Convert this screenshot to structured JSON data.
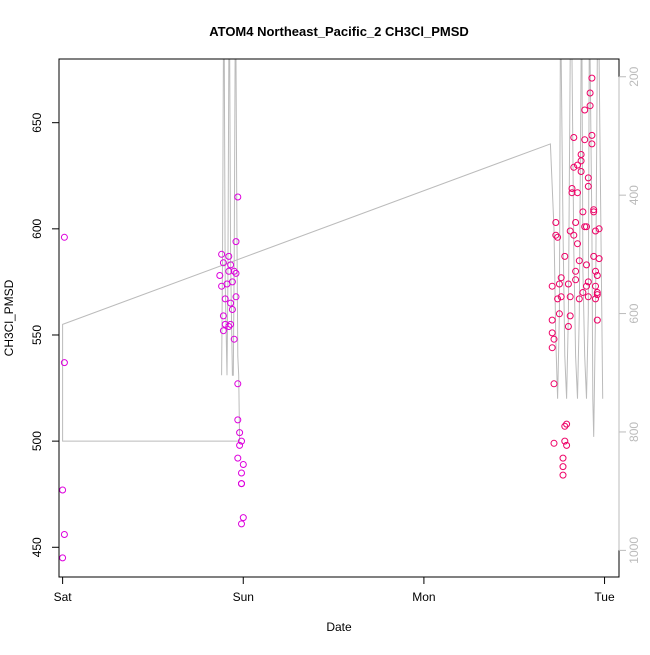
{
  "chart_data": {
    "type": "scatter",
    "title": "ATOM4 Northeast_Pacific_2 CH3Cl_PMSD",
    "xlabel": "Date",
    "ylabel": "CH3Cl_PMSD",
    "xlim": [
      -0.02,
      3.08
    ],
    "ylim": [
      436,
      680
    ],
    "right_ylim": [
      1045,
      170
    ],
    "x_ticks": [
      {
        "value": 0,
        "label": "Sat"
      },
      {
        "value": 1,
        "label": "Sun"
      },
      {
        "value": 2,
        "label": "Mon"
      },
      {
        "value": 3,
        "label": "Tue"
      }
    ],
    "y_ticks": [
      {
        "value": 450,
        "label": "450"
      },
      {
        "value": 500,
        "label": "500"
      },
      {
        "value": 550,
        "label": "550"
      },
      {
        "value": 600,
        "label": "600"
      },
      {
        "value": 650,
        "label": "650"
      }
    ],
    "right_y_ticks": [
      {
        "value": 200,
        "label": "200"
      },
      {
        "value": 400,
        "label": "400"
      },
      {
        "value": 600,
        "label": "600"
      },
      {
        "value": 800,
        "label": "800"
      },
      {
        "value": 1000,
        "label": "1000"
      }
    ],
    "grid": false,
    "colors": {
      "points_low": "#dd00dd",
      "points_high": "#ee0066",
      "altitude_line": "#bbbbbb",
      "axis": "#000000"
    },
    "points": [
      [
        0.01,
        596
      ],
      [
        0.01,
        537
      ],
      [
        0.0,
        477
      ],
      [
        0.01,
        456
      ],
      [
        0.0,
        445
      ],
      [
        0.88,
        588
      ],
      [
        0.89,
        584
      ],
      [
        0.87,
        578
      ],
      [
        0.88,
        573
      ],
      [
        0.89,
        559
      ],
      [
        0.9,
        555
      ],
      [
        0.89,
        552
      ],
      [
        0.91,
        574
      ],
      [
        0.9,
        567
      ],
      [
        0.92,
        587
      ],
      [
        0.92,
        580
      ],
      [
        0.93,
        565
      ],
      [
        0.93,
        555
      ],
      [
        0.93,
        583
      ],
      [
        0.94,
        575
      ],
      [
        0.95,
        580
      ],
      [
        0.94,
        562
      ],
      [
        0.95,
        548
      ],
      [
        0.96,
        579
      ],
      [
        0.96,
        568
      ],
      [
        0.92,
        554
      ],
      [
        0.97,
        615
      ],
      [
        0.96,
        594
      ],
      [
        0.97,
        527
      ],
      [
        0.97,
        510
      ],
      [
        0.98,
        504
      ],
      [
        0.98,
        498
      ],
      [
        0.99,
        500
      ],
      [
        0.97,
        492
      ],
      [
        0.99,
        485
      ],
      [
        0.99,
        480
      ],
      [
        1.0,
        489
      ],
      [
        0.99,
        480
      ],
      [
        1.0,
        464
      ],
      [
        0.99,
        461
      ],
      [
        2.71,
        573
      ],
      [
        2.71,
        557
      ],
      [
        2.71,
        551
      ],
      [
        2.71,
        544
      ],
      [
        2.72,
        548
      ],
      [
        2.72,
        527
      ],
      [
        2.72,
        499
      ],
      [
        2.73,
        603
      ],
      [
        2.73,
        597
      ],
      [
        2.74,
        596
      ],
      [
        2.74,
        567
      ],
      [
        2.75,
        560
      ],
      [
        2.75,
        574
      ],
      [
        2.76,
        577
      ],
      [
        2.76,
        568
      ],
      [
        2.77,
        492
      ],
      [
        2.77,
        488
      ],
      [
        2.77,
        484
      ],
      [
        2.78,
        507
      ],
      [
        2.78,
        500
      ],
      [
        2.79,
        508
      ],
      [
        2.79,
        498
      ],
      [
        2.8,
        554
      ],
      [
        2.8,
        574
      ],
      [
        2.81,
        559
      ],
      [
        2.81,
        599
      ],
      [
        2.81,
        568
      ],
      [
        2.82,
        619
      ],
      [
        2.82,
        617
      ],
      [
        2.83,
        643
      ],
      [
        2.83,
        629
      ],
      [
        2.83,
        597
      ],
      [
        2.84,
        603
      ],
      [
        2.84,
        580
      ],
      [
        2.84,
        576
      ],
      [
        2.85,
        617
      ],
      [
        2.85,
        630
      ],
      [
        2.85,
        593
      ],
      [
        2.86,
        585
      ],
      [
        2.86,
        567
      ],
      [
        2.87,
        635
      ],
      [
        2.87,
        632
      ],
      [
        2.87,
        627
      ],
      [
        2.88,
        608
      ],
      [
        2.88,
        570
      ],
      [
        2.89,
        656
      ],
      [
        2.89,
        642
      ],
      [
        2.89,
        601
      ],
      [
        2.9,
        601
      ],
      [
        2.9,
        583
      ],
      [
        2.9,
        573
      ],
      [
        2.91,
        575
      ],
      [
        2.91,
        568
      ],
      [
        2.91,
        620
      ],
      [
        2.91,
        624
      ],
      [
        2.92,
        658
      ],
      [
        2.92,
        664
      ],
      [
        2.93,
        671
      ],
      [
        2.93,
        644
      ],
      [
        2.93,
        640
      ],
      [
        2.94,
        609
      ],
      [
        2.94,
        608
      ],
      [
        2.94,
        587
      ],
      [
        2.95,
        580
      ],
      [
        2.95,
        573
      ],
      [
        2.95,
        567
      ],
      [
        2.96,
        570
      ],
      [
        2.96,
        557
      ],
      [
        2.97,
        586
      ],
      [
        2.97,
        600
      ],
      [
        2.95,
        599
      ],
      [
        2.96,
        569
      ],
      [
        2.96,
        578
      ],
      [
        2.78,
        587
      ]
    ],
    "altitude_line": [
      [
        0.88,
        531
      ],
      [
        0.885,
        585
      ],
      [
        0.89,
        680
      ],
      [
        0.895,
        680
      ],
      [
        0.9,
        575
      ],
      [
        0.91,
        531
      ],
      [
        0.915,
        575
      ],
      [
        0.92,
        680
      ],
      [
        0.925,
        680
      ],
      [
        0.93,
        585
      ],
      [
        0.94,
        531
      ],
      [
        0.945,
        531
      ],
      [
        0.95,
        585
      ],
      [
        0.955,
        680
      ],
      [
        0.96,
        680
      ],
      [
        0.965,
        600
      ],
      [
        0.97,
        540
      ],
      [
        0.975,
        531
      ],
      [
        0.98,
        500
      ],
      [
        0.0,
        500
      ],
      [
        0.0,
        555
      ],
      [
        2.7,
        640
      ],
      [
        2.72,
        600
      ],
      [
        2.73,
        548
      ],
      [
        2.74,
        520
      ],
      [
        2.75,
        560
      ],
      [
        2.755,
        680
      ],
      [
        2.76,
        680
      ],
      [
        2.77,
        600
      ],
      [
        2.78,
        540
      ],
      [
        2.79,
        520
      ],
      [
        2.8,
        560
      ],
      [
        2.81,
        680
      ],
      [
        2.82,
        680
      ],
      [
        2.83,
        590
      ],
      [
        2.84,
        540
      ],
      [
        2.85,
        520
      ],
      [
        2.86,
        560
      ],
      [
        2.87,
        680
      ],
      [
        2.875,
        680
      ],
      [
        2.88,
        580
      ],
      [
        2.89,
        540
      ],
      [
        2.9,
        520
      ],
      [
        2.91,
        560
      ],
      [
        2.915,
        680
      ],
      [
        2.92,
        680
      ],
      [
        2.93,
        600
      ],
      [
        2.935,
        520
      ],
      [
        2.94,
        502
      ],
      [
        2.95,
        560
      ],
      [
        2.96,
        680
      ],
      [
        2.97,
        680
      ],
      [
        2.98,
        600
      ],
      [
        2.99,
        520
      ]
    ]
  }
}
